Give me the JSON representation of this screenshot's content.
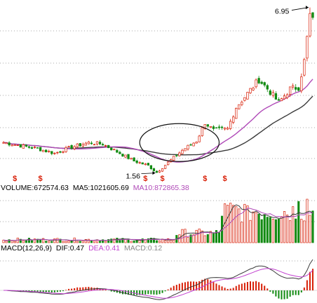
{
  "colors": {
    "up": "#d81e06",
    "down": "#118a11",
    "ma_short": "#3a3a3a",
    "ma_long": "#b04ab8",
    "dea": "#c13fcf",
    "dif": "#3a3a3a",
    "grid": "#555555",
    "sell_marker": "#d81e06"
  },
  "chart_data": [
    {
      "type": "candlestick",
      "name": "price",
      "x_count": 110,
      "ylim": [
        1.3,
        7.1
      ],
      "annotations": [
        {
          "label": "6.95",
          "index": 108,
          "value": 6.95
        },
        {
          "label": "1.56",
          "index": 54,
          "value": 1.56
        }
      ],
      "markers": {
        "symbol": "$",
        "indices": [
          4,
          13,
          50,
          56,
          71,
          78
        ]
      },
      "circle_highlight": {
        "index_from": 48,
        "index_to": 76,
        "value_center": 2.55
      },
      "keypoints": [
        {
          "i": 0,
          "v": 2.55
        },
        {
          "i": 6,
          "v": 2.45
        },
        {
          "i": 12,
          "v": 2.35
        },
        {
          "i": 18,
          "v": 2.2
        },
        {
          "i": 24,
          "v": 2.4
        },
        {
          "i": 30,
          "v": 2.55
        },
        {
          "i": 35,
          "v": 2.5
        },
        {
          "i": 40,
          "v": 2.25
        },
        {
          "i": 46,
          "v": 1.95
        },
        {
          "i": 51,
          "v": 1.8
        },
        {
          "i": 54,
          "v": 1.58
        },
        {
          "i": 58,
          "v": 1.9
        },
        {
          "i": 63,
          "v": 2.3
        },
        {
          "i": 68,
          "v": 2.6
        },
        {
          "i": 71,
          "v": 3.2
        },
        {
          "i": 74,
          "v": 2.95
        },
        {
          "i": 79,
          "v": 3.0
        },
        {
          "i": 82,
          "v": 3.7
        },
        {
          "i": 86,
          "v": 4.15
        },
        {
          "i": 90,
          "v": 4.6
        },
        {
          "i": 94,
          "v": 4.2
        },
        {
          "i": 97,
          "v": 3.85
        },
        {
          "i": 101,
          "v": 4.3
        },
        {
          "i": 104,
          "v": 4.35
        },
        {
          "i": 106,
          "v": 5.2
        },
        {
          "i": 108,
          "v": 6.7
        },
        {
          "i": 109,
          "v": 6.5
        }
      ]
    },
    {
      "type": "bar",
      "name": "volume",
      "labels": [
        {
          "text": "VOLUME:672574.63",
          "color": "#000000"
        },
        {
          "text": "MA5:1021605.69",
          "color": "#000000"
        },
        {
          "text": "MA10:872865.38",
          "color": "#b04ab8"
        }
      ]
    },
    {
      "type": "bar",
      "name": "macd",
      "labels": [
        {
          "text": "MACD(12,26,9)",
          "color": "#000000"
        },
        {
          "text": "DIF:0.47",
          "color": "#000000"
        },
        {
          "text": "DEA:0.41",
          "color": "#c13fcf"
        },
        {
          "text": "MACD:0.12",
          "color": "#888888"
        }
      ]
    }
  ]
}
